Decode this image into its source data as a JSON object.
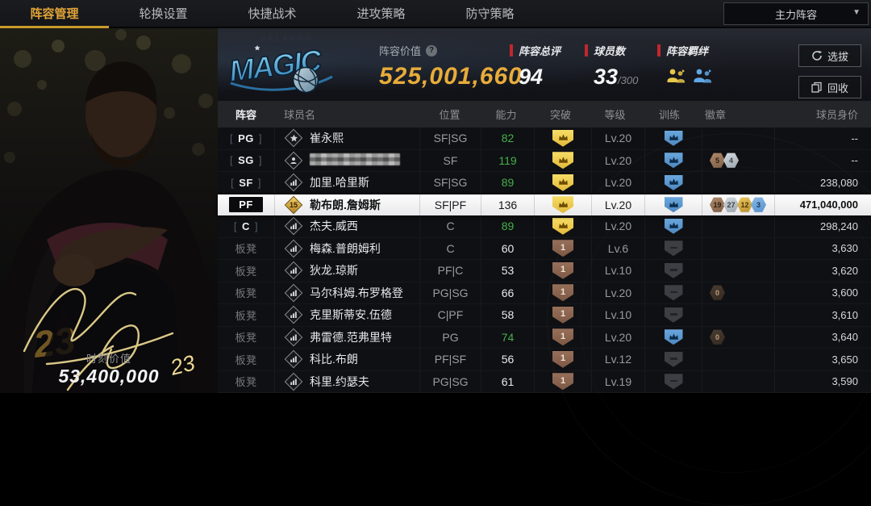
{
  "tabs": [
    {
      "label": "阵容管理",
      "active": true
    },
    {
      "label": "轮换设置",
      "active": false
    },
    {
      "label": "快捷战术",
      "active": false
    },
    {
      "label": "进攻策略",
      "active": false
    },
    {
      "label": "防守策略",
      "active": false
    }
  ],
  "lineup_selector": {
    "label": "主力阵容",
    "caret": "▼"
  },
  "left_panel": {
    "moment_value_label": "时刻价值",
    "moment_value": "53,400,000",
    "signature_number": "23"
  },
  "header": {
    "team_logo": {
      "title": "MAGIC",
      "subtitle": "ORLANDO"
    },
    "lineup_value_label": "阵容价值",
    "lineup_value_help": "?",
    "lineup_value": "525,001,660",
    "overall_label": "阵容总评",
    "overall": "94",
    "player_count_label": "球员数",
    "player_count": "33",
    "player_count_max": "/300",
    "bonds_label": "阵容羁绊",
    "bond_icons": [
      {
        "name": "bond-team-icon",
        "color": "#e7c64a"
      },
      {
        "name": "bond-team-icon",
        "color": "#5fa8e8"
      }
    ],
    "buttons": [
      {
        "label": "选拔",
        "icon": "refresh-icon"
      },
      {
        "label": "回收",
        "icon": "recycle-icon"
      }
    ]
  },
  "colors": {
    "accent_gold": "#e8ac3a",
    "accent_red": "#c1272d",
    "ability_green": "#44b04c",
    "training_blue": "#5c9bd3"
  },
  "table": {
    "columns": [
      "阵容",
      "球员名",
      "位置",
      "能力",
      "突破",
      "等级",
      "训练",
      "徽章",
      "球员身价"
    ],
    "rows": [
      {
        "slot": "PG",
        "slot_type": "starter",
        "icon": "star",
        "name": "崔永熙",
        "masked": false,
        "position": "SF|SG",
        "ability": "82",
        "ability_high": true,
        "breakthrough": "gold",
        "level": "Lv.20",
        "training": "blue",
        "badges": [],
        "value": "--",
        "highlighted": false
      },
      {
        "slot": "SG",
        "slot_type": "starter",
        "icon": "person",
        "name": "",
        "masked": true,
        "position": "SF",
        "ability": "119",
        "ability_high": true,
        "breakthrough": "gold",
        "level": "Lv.20",
        "training": "blue",
        "badges": [
          {
            "tier": "bronze",
            "num": "5"
          },
          {
            "tier": "silver",
            "num": "4"
          }
        ],
        "value": "--",
        "highlighted": false
      },
      {
        "slot": "SF",
        "slot_type": "starter",
        "icon": "bars",
        "name": "加里.哈里斯",
        "masked": false,
        "position": "SF|SG",
        "ability": "89",
        "ability_high": true,
        "breakthrough": "gold",
        "level": "Lv.20",
        "training": "blue",
        "badges": [],
        "value": "238,080",
        "highlighted": false
      },
      {
        "slot": "PF",
        "slot_type": "active",
        "icon": "gold15",
        "name": "勒布朗.詹姆斯",
        "masked": false,
        "position": "SF|PF",
        "ability": "136",
        "ability_high": false,
        "breakthrough": "gold",
        "level": "Lv.20",
        "training": "blue",
        "badges": [
          {
            "tier": "bronze",
            "num": "19"
          },
          {
            "tier": "silver",
            "num": "27"
          },
          {
            "tier": "gold",
            "num": "12"
          },
          {
            "tier": "blue",
            "num": "3"
          }
        ],
        "value": "471,040,000",
        "highlighted": true
      },
      {
        "slot": "C",
        "slot_type": "starter",
        "icon": "bars",
        "name": "杰夫.威西",
        "masked": false,
        "position": "C",
        "ability": "89",
        "ability_high": true,
        "breakthrough": "gold",
        "level": "Lv.20",
        "training": "blue",
        "badges": [],
        "value": "298,240",
        "highlighted": false
      },
      {
        "slot": "板凳",
        "slot_type": "bench",
        "icon": "bars",
        "name": "梅森.普朗姆利",
        "masked": false,
        "position": "C",
        "ability": "60",
        "ability_high": false,
        "breakthrough": "bronze1",
        "level": "Lv.6",
        "training": "gray",
        "badges": [],
        "value": "3,630",
        "highlighted": false
      },
      {
        "slot": "板凳",
        "slot_type": "bench",
        "icon": "bars",
        "name": "狄龙.琼斯",
        "masked": false,
        "position": "PF|C",
        "ability": "53",
        "ability_high": false,
        "breakthrough": "bronze1",
        "level": "Lv.10",
        "training": "gray",
        "badges": [],
        "value": "3,620",
        "highlighted": false
      },
      {
        "slot": "板凳",
        "slot_type": "bench",
        "icon": "bars",
        "name": "马尔科姆.布罗格登",
        "masked": false,
        "position": "PG|SG",
        "ability": "66",
        "ability_high": false,
        "breakthrough": "bronze1",
        "level": "Lv.20",
        "training": "gray",
        "badges": [
          {
            "tier": "dark",
            "num": "0"
          }
        ],
        "value": "3,600",
        "highlighted": false
      },
      {
        "slot": "板凳",
        "slot_type": "bench",
        "icon": "bars",
        "name": "克里斯蒂安.伍德",
        "masked": false,
        "position": "C|PF",
        "ability": "58",
        "ability_high": false,
        "breakthrough": "bronze1",
        "level": "Lv.10",
        "training": "gray",
        "badges": [],
        "value": "3,610",
        "highlighted": false
      },
      {
        "slot": "板凳",
        "slot_type": "bench",
        "icon": "bars",
        "name": "弗雷德.范弗里特",
        "masked": false,
        "position": "PG",
        "ability": "74",
        "ability_high": true,
        "breakthrough": "bronze1",
        "level": "Lv.20",
        "training": "blue",
        "badges": [
          {
            "tier": "dark",
            "num": "0"
          }
        ],
        "value": "3,640",
        "highlighted": false
      },
      {
        "slot": "板凳",
        "slot_type": "bench",
        "icon": "bars",
        "name": "科比.布朗",
        "masked": false,
        "position": "PF|SF",
        "ability": "56",
        "ability_high": false,
        "breakthrough": "bronze1",
        "level": "Lv.12",
        "training": "gray",
        "badges": [],
        "value": "3,650",
        "highlighted": false
      },
      {
        "slot": "板凳",
        "slot_type": "bench",
        "icon": "bars",
        "name": "科里.约瑟夫",
        "masked": false,
        "position": "PG|SG",
        "ability": "61",
        "ability_high": false,
        "breakthrough": "bronze1",
        "level": "Lv.19",
        "training": "gray",
        "badges": [],
        "value": "3,590",
        "highlighted": false
      }
    ]
  }
}
